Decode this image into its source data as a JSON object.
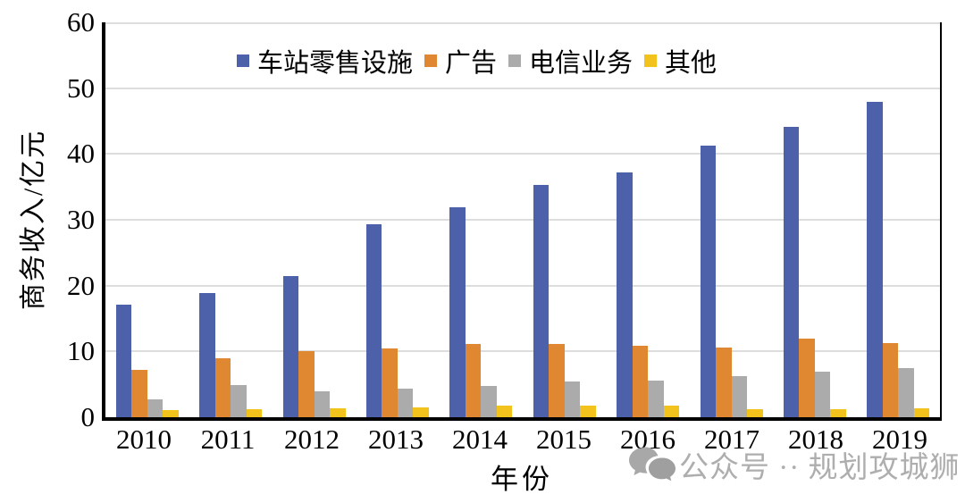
{
  "chart_data": {
    "type": "bar",
    "title": "",
    "xlabel": "年份",
    "ylabel": "商务收入/亿元",
    "ylim": [
      0,
      60
    ],
    "yticks": [
      0,
      10,
      20,
      30,
      40,
      50,
      60
    ],
    "grid": true,
    "legend_position": "top-inside",
    "categories": [
      "2010",
      "2011",
      "2012",
      "2013",
      "2014",
      "2015",
      "2016",
      "2017",
      "2018",
      "2019"
    ],
    "series": [
      {
        "name": "车站零售设施",
        "color": "#4C61A9",
        "values": [
          17.1,
          18.9,
          21.4,
          29.3,
          31.9,
          35.3,
          37.2,
          41.3,
          44.1,
          47.9
        ]
      },
      {
        "name": "广告",
        "color": "#DF8831",
        "values": [
          7.2,
          8.9,
          10.0,
          10.4,
          11.1,
          11.1,
          10.8,
          10.6,
          12.0,
          11.3
        ]
      },
      {
        "name": "电信业务",
        "color": "#ABABAB",
        "values": [
          2.7,
          4.9,
          3.9,
          4.4,
          4.7,
          5.4,
          5.6,
          6.3,
          6.9,
          7.5
        ]
      },
      {
        "name": "其他",
        "color": "#F1C31C",
        "values": [
          1.1,
          1.2,
          1.4,
          1.5,
          1.7,
          1.8,
          1.7,
          1.2,
          1.2,
          1.3
        ]
      }
    ]
  },
  "watermark": {
    "icon": "wechat-icon",
    "text": "公众号 ·· 规划攻城狮",
    "color": "#a0a0a0"
  }
}
